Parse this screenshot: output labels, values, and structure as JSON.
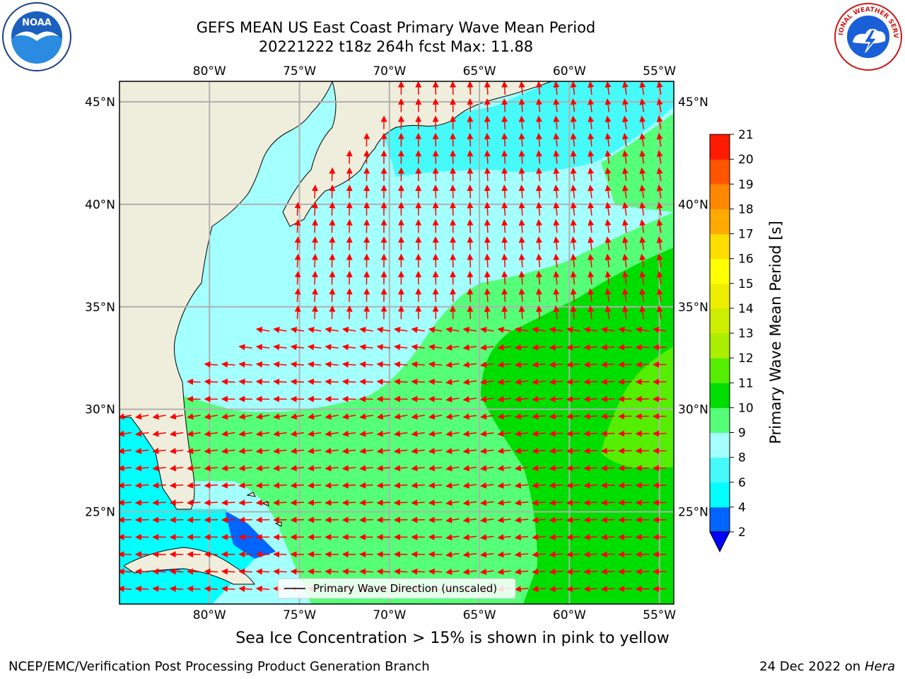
{
  "header": {
    "title_line1": "GEFS MEAN US East Coast Primary Wave Mean Period",
    "title_line2": "20221222 t18z 264h fcst   Max: 11.88"
  },
  "logos": {
    "left": {
      "icon": "noaa-logo",
      "text": "NOAA"
    },
    "right": {
      "icon": "nws-logo",
      "text": "NATIONAL WEATHER SERVICE"
    }
  },
  "map": {
    "projection": "Plate Carree",
    "lon_ticks": [
      "80°W",
      "75°W",
      "70°W",
      "65°W",
      "60°W",
      "55°W"
    ],
    "lat_ticks": [
      "45°N",
      "40°N",
      "35°N",
      "30°N",
      "25°N"
    ],
    "lon_values": [
      -80,
      -75,
      -70,
      -65,
      -60,
      -55
    ],
    "lat_values": [
      45,
      40,
      35,
      30,
      25
    ],
    "extent": {
      "lon": [
        -85,
        -54.2
      ],
      "lat": [
        20.5,
        46
      ]
    },
    "land_color": "#efeedc",
    "grid_color": "#b0b0b0",
    "arrow_color": "#ff0000",
    "legend_text": "Primary Wave Direction (unscaled)"
  },
  "colorbar": {
    "label": "Primary Wave Mean Period [s]",
    "tick_labels": [
      "2",
      "4",
      "6",
      "8",
      "9",
      "10",
      "11",
      "12",
      "13",
      "14",
      "15",
      "16",
      "17",
      "18",
      "19",
      "20",
      "21"
    ],
    "colors": [
      "#0064ff",
      "#00ffff",
      "#46fafa",
      "#a4ffff",
      "#55ff77",
      "#00dd00",
      "#55ee00",
      "#aaee00",
      "#ccee00",
      "#eeee00",
      "#ffff00",
      "#ffdd00",
      "#ffaa00",
      "#ff8800",
      "#ff5500",
      "#ff1a00",
      "#ff0000"
    ],
    "extend_color": "#0000ff"
  },
  "footer": {
    "ice_note": "Sea Ice Concentration > 15% is shown in pink to yellow",
    "credit": "NCEP/EMC/Verification Post Processing Product Generation Branch",
    "date": "24 Dec 2022 on",
    "machine": "Hera"
  }
}
